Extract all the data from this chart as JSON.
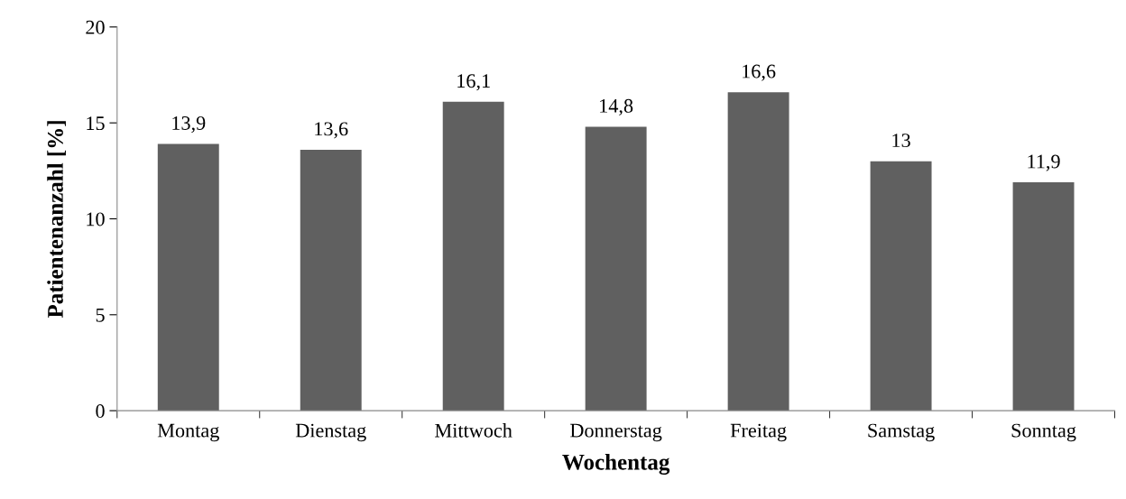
{
  "chart_data": {
    "type": "bar",
    "xlabel": "Wochentag",
    "ylabel": "Patientenanzahl [%]",
    "categories": [
      "Montag",
      "Dienstag",
      "Mittwoch",
      "Donnerstag",
      "Freitag",
      "Samstag",
      "Sonntag"
    ],
    "values": [
      13.9,
      13.6,
      16.1,
      14.8,
      16.6,
      13,
      11.9
    ],
    "value_labels": [
      "13,9",
      "13,6",
      "16,1",
      "14,8",
      "16,6",
      "13",
      "11,9"
    ],
    "color": "#606060",
    "ylim": [
      0,
      20
    ],
    "yticks": [
      0,
      5,
      10,
      15,
      20
    ],
    "grid": false
  }
}
